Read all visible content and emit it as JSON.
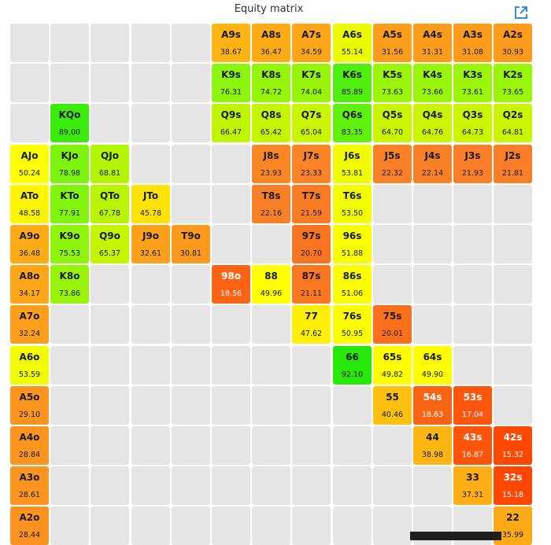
{
  "title": "Equity matrix",
  "icons": {
    "open": "external-link-icon"
  },
  "colors": {
    "empty": "#e5e5e5"
  },
  "ranks": [
    "A",
    "K",
    "Q",
    "J",
    "T",
    "9",
    "8",
    "7",
    "6",
    "5",
    "4",
    "3",
    "2"
  ],
  "cells": [
    {
      "hand": "A9s",
      "eq": "38.67"
    },
    {
      "hand": "A8s",
      "eq": "36.47"
    },
    {
      "hand": "A7s",
      "eq": "34.59"
    },
    {
      "hand": "A6s",
      "eq": "55.14"
    },
    {
      "hand": "A5s",
      "eq": "31.56"
    },
    {
      "hand": "A4s",
      "eq": "31.31"
    },
    {
      "hand": "A3s",
      "eq": "31.08"
    },
    {
      "hand": "A2s",
      "eq": "30.93"
    },
    {
      "hand": "K9s",
      "eq": "76.31"
    },
    {
      "hand": "K8s",
      "eq": "74.72"
    },
    {
      "hand": "K7s",
      "eq": "74.04"
    },
    {
      "hand": "K6s",
      "eq": "85.89"
    },
    {
      "hand": "K5s",
      "eq": "73.63"
    },
    {
      "hand": "K4s",
      "eq": "73.66"
    },
    {
      "hand": "K3s",
      "eq": "73.61"
    },
    {
      "hand": "K2s",
      "eq": "73.65"
    },
    {
      "hand": "KQo",
      "eq": "89.00"
    },
    {
      "hand": "Q9s",
      "eq": "66.47"
    },
    {
      "hand": "Q8s",
      "eq": "65.42"
    },
    {
      "hand": "Q7s",
      "eq": "65.04"
    },
    {
      "hand": "Q6s",
      "eq": "83.35"
    },
    {
      "hand": "Q5s",
      "eq": "64.70"
    },
    {
      "hand": "Q4s",
      "eq": "64.76"
    },
    {
      "hand": "Q3s",
      "eq": "64.73"
    },
    {
      "hand": "Q2s",
      "eq": "64.81"
    },
    {
      "hand": "AJo",
      "eq": "50.24"
    },
    {
      "hand": "KJo",
      "eq": "78.98"
    },
    {
      "hand": "QJo",
      "eq": "68.81"
    },
    {
      "hand": "J8s",
      "eq": "23.93"
    },
    {
      "hand": "J7s",
      "eq": "23.33"
    },
    {
      "hand": "J6s",
      "eq": "53.81"
    },
    {
      "hand": "J5s",
      "eq": "22.32"
    },
    {
      "hand": "J4s",
      "eq": "22.14"
    },
    {
      "hand": "J3s",
      "eq": "21.93"
    },
    {
      "hand": "J2s",
      "eq": "21.81"
    },
    {
      "hand": "ATo",
      "eq": "48.58"
    },
    {
      "hand": "KTo",
      "eq": "77.91"
    },
    {
      "hand": "QTo",
      "eq": "67.78"
    },
    {
      "hand": "JTo",
      "eq": "45.78"
    },
    {
      "hand": "T8s",
      "eq": "22.16"
    },
    {
      "hand": "T7s",
      "eq": "21.59"
    },
    {
      "hand": "T6s",
      "eq": "53.50"
    },
    {
      "hand": "A9o",
      "eq": "36.48"
    },
    {
      "hand": "K9o",
      "eq": "75.53"
    },
    {
      "hand": "Q9o",
      "eq": "65.37"
    },
    {
      "hand": "J9o",
      "eq": "32.61"
    },
    {
      "hand": "T9o",
      "eq": "30.81"
    },
    {
      "hand": "97s",
      "eq": "20.70"
    },
    {
      "hand": "96s",
      "eq": "51.88"
    },
    {
      "hand": "A8o",
      "eq": "34.17"
    },
    {
      "hand": "K8o",
      "eq": "73.86"
    },
    {
      "hand": "98o",
      "eq": "18.56"
    },
    {
      "hand": "88",
      "eq": "49.96"
    },
    {
      "hand": "87s",
      "eq": "21.11"
    },
    {
      "hand": "86s",
      "eq": "51.06"
    },
    {
      "hand": "A7o",
      "eq": "32.24"
    },
    {
      "hand": "77",
      "eq": "47.62"
    },
    {
      "hand": "76s",
      "eq": "50.95"
    },
    {
      "hand": "75s",
      "eq": "20.01"
    },
    {
      "hand": "A6o",
      "eq": "53.59"
    },
    {
      "hand": "66",
      "eq": "92.10"
    },
    {
      "hand": "65s",
      "eq": "49.82"
    },
    {
      "hand": "64s",
      "eq": "49.90"
    },
    {
      "hand": "A5o",
      "eq": "29.10"
    },
    {
      "hand": "55",
      "eq": "40.46"
    },
    {
      "hand": "54s",
      "eq": "18.63"
    },
    {
      "hand": "53s",
      "eq": "17.04"
    },
    {
      "hand": "A4o",
      "eq": "28.84"
    },
    {
      "hand": "44",
      "eq": "38.98"
    },
    {
      "hand": "43s",
      "eq": "16.87"
    },
    {
      "hand": "42s",
      "eq": "15.32"
    },
    {
      "hand": "A3o",
      "eq": "28.61"
    },
    {
      "hand": "33",
      "eq": "37.31"
    },
    {
      "hand": "32s",
      "eq": "15.18"
    },
    {
      "hand": "A2o",
      "eq": "28.44"
    },
    {
      "hand": "22",
      "eq": "35.99"
    }
  ]
}
